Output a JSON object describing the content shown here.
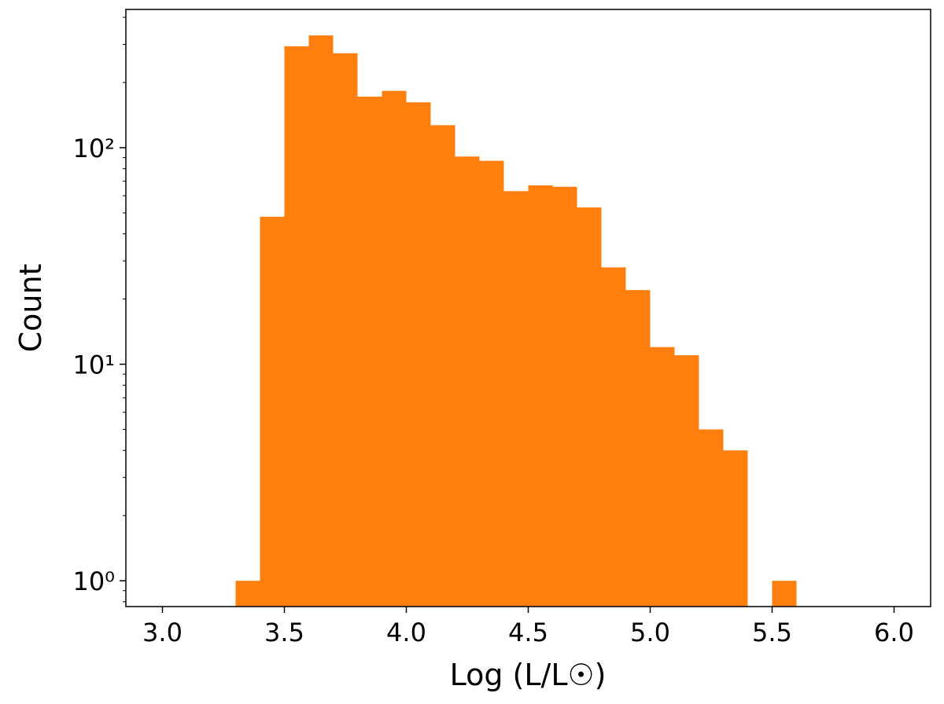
{
  "chart_data": {
    "type": "histogram",
    "xlabel": "Log (L/L☉)",
    "ylabel": "Count",
    "bins": [
      3.3,
      3.4,
      3.5,
      3.6,
      3.7,
      3.8,
      3.9,
      4.0,
      4.1,
      4.2,
      4.3,
      4.4,
      4.5,
      4.6,
      4.7,
      4.8,
      4.9,
      5.0,
      5.1,
      5.2,
      5.3,
      5.4,
      5.5,
      5.6
    ],
    "values": [
      1,
      48,
      294,
      330,
      273,
      172,
      183,
      162,
      127,
      91,
      87,
      63,
      67,
      66,
      53,
      28,
      22,
      12,
      11,
      5,
      4,
      0,
      1
    ],
    "color": "#ff7f0e",
    "xlim": [
      2.85,
      6.15
    ],
    "xticks": [
      {
        "value": 3,
        "label": "3.0"
      },
      3.5,
      {
        "value": 4,
        "label": "4.0"
      },
      4.5,
      {
        "value": 5,
        "label": "5.0"
      },
      5.5,
      {
        "value": 6,
        "label": "6.0"
      }
    ],
    "ylim": [
      0.76,
      435
    ],
    "ylog": true,
    "yticks": [
      {
        "value": 1,
        "label": "10⁰"
      },
      {
        "value": 10,
        "label": "10¹"
      },
      {
        "value": 100,
        "label": "10²"
      }
    ],
    "yminorticks": [
      0.8,
      0.9,
      2,
      3,
      4,
      5,
      6,
      7,
      8,
      9,
      20,
      30,
      40,
      50,
      60,
      70,
      80,
      90,
      200,
      300,
      400
    ]
  }
}
